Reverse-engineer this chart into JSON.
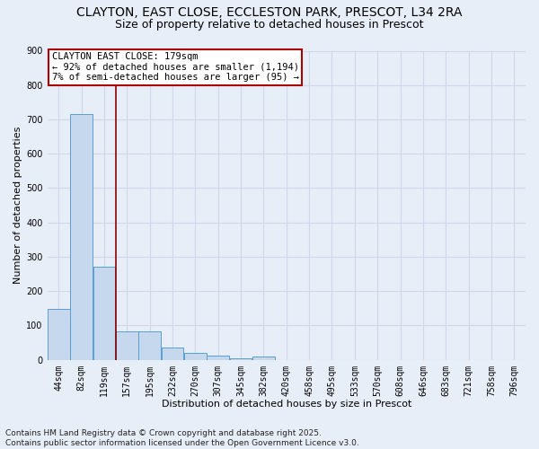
{
  "title_line1": "CLAYTON, EAST CLOSE, ECCLESTON PARK, PRESCOT, L34 2RA",
  "title_line2": "Size of property relative to detached houses in Prescot",
  "xlabel": "Distribution of detached houses by size in Prescot",
  "ylabel": "Number of detached properties",
  "categories": [
    "44sqm",
    "82sqm",
    "119sqm",
    "157sqm",
    "195sqm",
    "232sqm",
    "270sqm",
    "307sqm",
    "345sqm",
    "382sqm",
    "420sqm",
    "458sqm",
    "495sqm",
    "533sqm",
    "570sqm",
    "608sqm",
    "646sqm",
    "683sqm",
    "721sqm",
    "758sqm",
    "796sqm"
  ],
  "values": [
    148,
    716,
    270,
    83,
    83,
    37,
    20,
    12,
    5,
    9,
    0,
    0,
    0,
    0,
    0,
    0,
    0,
    0,
    0,
    0,
    0
  ],
  "bar_color": "#c5d8ee",
  "bar_edge_color": "#5a9fd4",
  "bg_color": "#e8eef8",
  "grid_color": "#d0d8e8",
  "annotation_text": "CLAYTON EAST CLOSE: 179sqm\n← 92% of detached houses are smaller (1,194)\n7% of semi-detached houses are larger (95) →",
  "annotation_box_color": "#ffffff",
  "annotation_box_edge": "#aa0000",
  "vline_color": "#8b0000",
  "vline_x_index": 2.5,
  "ylim": [
    0,
    900
  ],
  "yticks": [
    0,
    100,
    200,
    300,
    400,
    500,
    600,
    700,
    800,
    900
  ],
  "footnote": "Contains HM Land Registry data © Crown copyright and database right 2025.\nContains public sector information licensed under the Open Government Licence v3.0.",
  "title_fontsize": 10,
  "subtitle_fontsize": 9,
  "label_fontsize": 8,
  "tick_fontsize": 7,
  "annot_fontsize": 7.5,
  "footnote_fontsize": 6.5
}
